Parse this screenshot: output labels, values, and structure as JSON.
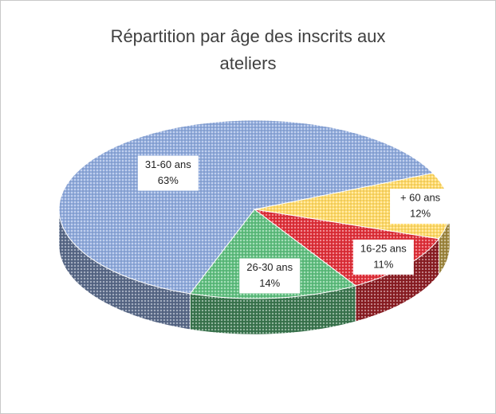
{
  "chart_data": {
    "type": "pie",
    "title": "Répartition par âge des inscrits aux ateliers",
    "categories": [
      "+ 60 ans",
      "16-25 ans",
      "26-30 ans",
      "31-60 ans"
    ],
    "values": [
      12,
      11,
      14,
      63
    ],
    "value_labels": [
      "12%",
      "11%",
      "14%",
      "63%"
    ],
    "colors": [
      "#ffd966",
      "#e0303a",
      "#5fbf7f",
      "#8faadc"
    ]
  }
}
